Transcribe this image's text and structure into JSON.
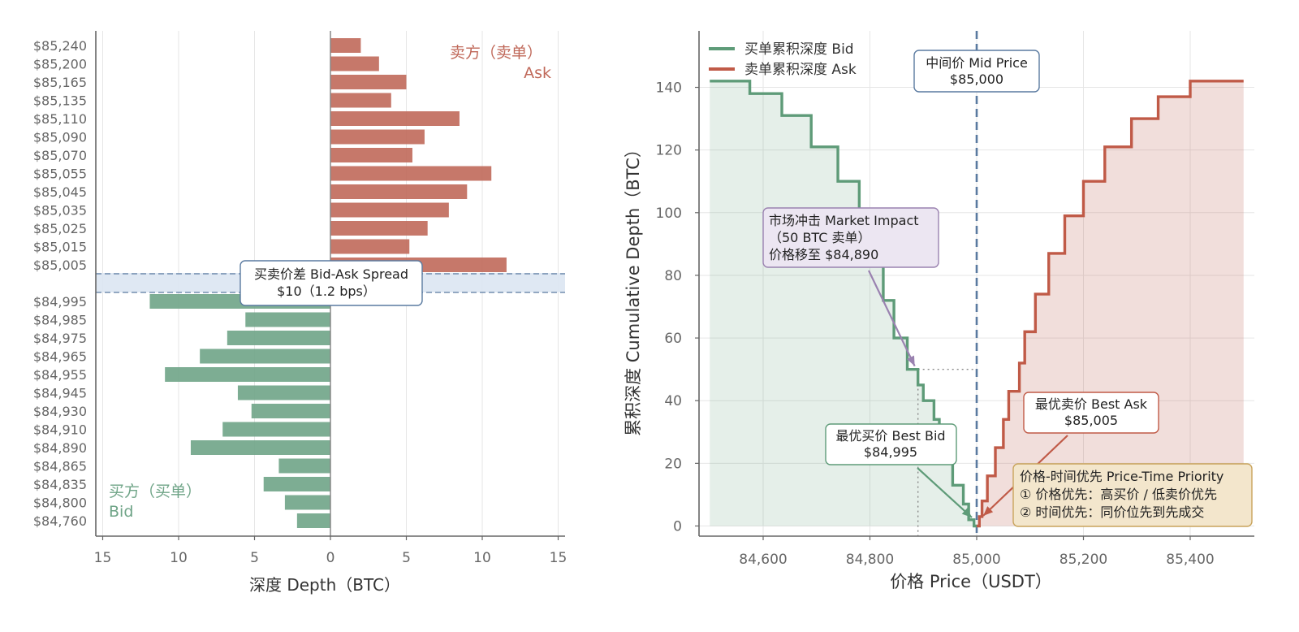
{
  "colors": {
    "bid": "#6fa487",
    "bid_line": "#5e9b78",
    "ask": "#c0695a",
    "ask_line": "#c05a47",
    "mid": "#5a7aa0",
    "axis": "#666666",
    "grid": "#e6e6e6",
    "tick_text": "#666666",
    "label_text": "#333333",
    "impact": "#9a82b0",
    "priority_bg": "#f3e6cc",
    "priority_border": "#c9a45c"
  },
  "chart_data": [
    {
      "type": "bar",
      "orientation": "horizontal",
      "xlabel": "深度 Depth（BTC）",
      "xlim": [
        -15.5,
        15.5
      ],
      "xticks": [
        -15,
        -10,
        -5,
        0,
        5,
        10,
        15
      ],
      "xtick_labels": [
        "15",
        "10",
        "5",
        "0",
        "5",
        "10",
        "15"
      ],
      "ask_levels": [
        {
          "price": "$85,240",
          "qty": 2.0
        },
        {
          "price": "$85,200",
          "qty": 3.2
        },
        {
          "price": "$85,165",
          "qty": 5.0
        },
        {
          "price": "$85,135",
          "qty": 4.0
        },
        {
          "price": "$85,110",
          "qty": 8.5
        },
        {
          "price": "$85,090",
          "qty": 6.2
        },
        {
          "price": "$85,070",
          "qty": 5.4
        },
        {
          "price": "$85,055",
          "qty": 10.6
        },
        {
          "price": "$85,045",
          "qty": 9.0
        },
        {
          "price": "$85,035",
          "qty": 7.8
        },
        {
          "price": "$85,025",
          "qty": 6.4
        },
        {
          "price": "$85,015",
          "qty": 5.2
        },
        {
          "price": "$85,005",
          "qty": 11.6
        }
      ],
      "bid_levels": [
        {
          "price": "$84,995",
          "qty": 11.9
        },
        {
          "price": "$84,985",
          "qty": 5.6
        },
        {
          "price": "$84,975",
          "qty": 6.8
        },
        {
          "price": "$84,965",
          "qty": 8.6
        },
        {
          "price": "$84,955",
          "qty": 10.9
        },
        {
          "price": "$84,945",
          "qty": 6.1
        },
        {
          "price": "$84,930",
          "qty": 5.2
        },
        {
          "price": "$84,910",
          "qty": 7.1
        },
        {
          "price": "$84,890",
          "qty": 9.2
        },
        {
          "price": "$84,865",
          "qty": 3.4
        },
        {
          "price": "$84,835",
          "qty": 4.4
        },
        {
          "price": "$84,800",
          "qty": 3.0
        },
        {
          "price": "$84,760",
          "qty": 2.2
        }
      ],
      "ask_label_line1": "卖方（卖单）",
      "ask_label_line2": "Ask",
      "bid_label_line1": "买方（买单）",
      "bid_label_line2": "Bid",
      "spread_line1": "买卖价差 Bid-Ask Spread",
      "spread_line2": "$10（1.2 bps）"
    },
    {
      "type": "line",
      "step": true,
      "xlabel": "价格 Price（USDT）",
      "ylabel": "累积深度 Cumulative Depth（BTC）",
      "xlim": [
        84480,
        85520
      ],
      "ylim": [
        -3,
        150
      ],
      "xticks": [
        84600,
        84800,
        85000,
        85200,
        85400
      ],
      "xtick_labels": [
        "84,600",
        "84,800",
        "85,000",
        "85,200",
        "85,400"
      ],
      "yticks": [
        0,
        20,
        40,
        60,
        80,
        100,
        120,
        140
      ],
      "ytick_labels": [
        "0",
        "20",
        "40",
        "60",
        "80",
        "100",
        "120",
        "140"
      ],
      "series": [
        {
          "name": "买单累积深度 Bid",
          "points": [
            [
              85000,
              0
            ],
            [
              84995,
              2
            ],
            [
              84985,
              7
            ],
            [
              84975,
              13
            ],
            [
              84955,
              22
            ],
            [
              84930,
              34
            ],
            [
              84920,
              40
            ],
            [
              84900,
              45
            ],
            [
              84890,
              50
            ],
            [
              84870,
              60
            ],
            [
              84845,
              72
            ],
            [
              84825,
              86
            ],
            [
              84810,
              98
            ],
            [
              84780,
              110
            ],
            [
              84740,
              121
            ],
            [
              84690,
              131
            ],
            [
              84635,
              138
            ],
            [
              84575,
              142
            ],
            [
              84500,
              142
            ]
          ]
        },
        {
          "name": "卖单累积深度 Ask",
          "points": [
            [
              85000,
              0
            ],
            [
              85005,
              3
            ],
            [
              85010,
              8
            ],
            [
              85020,
              16
            ],
            [
              85035,
              25
            ],
            [
              85050,
              34
            ],
            [
              85060,
              43
            ],
            [
              85080,
              52
            ],
            [
              85090,
              62
            ],
            [
              85110,
              74
            ],
            [
              85135,
              87
            ],
            [
              85165,
              99
            ],
            [
              85200,
              110
            ],
            [
              85240,
              121
            ],
            [
              85290,
              130
            ],
            [
              85340,
              137
            ],
            [
              85400,
              142
            ],
            [
              85500,
              142
            ]
          ]
        }
      ],
      "mid_price": 85000,
      "mid_label_line1": "中间价 Mid Price",
      "mid_label_line2": "$85,000",
      "impact_label_lines": [
        "市场冲击 Market Impact",
        "（50 BTC 卖单）",
        "价格移至 $84,890"
      ],
      "impact_point": [
        84890,
        50
      ],
      "best_bid_label_line1": "最优买价 Best Bid",
      "best_bid_label_line2": "$84,995",
      "best_ask_label_line1": "最优卖价 Best Ask",
      "best_ask_label_line2": "$85,005",
      "priority_lines": [
        "价格-时间优先 Price-Time Priority",
        "① 价格优先：高买价 / 低卖价优先",
        "② 时间优先：同价位先到先成交"
      ]
    }
  ]
}
